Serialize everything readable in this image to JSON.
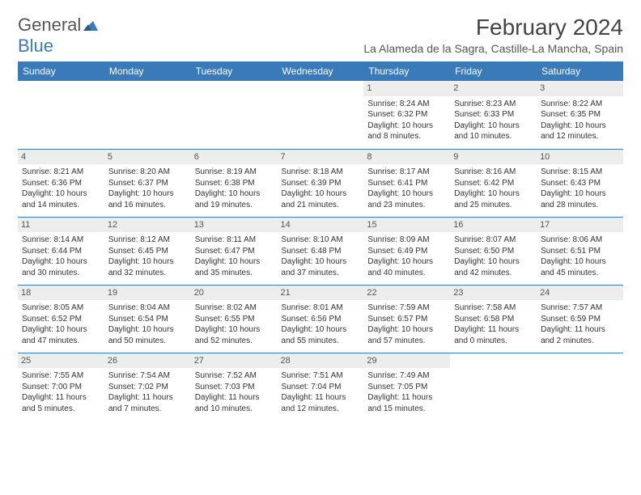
{
  "logo": {
    "word1": "General",
    "word2": "Blue"
  },
  "title": "February 2024",
  "location": "La Alameda de la Sagra, Castille-La Mancha, Spain",
  "weekdays": [
    "Sunday",
    "Monday",
    "Tuesday",
    "Wednesday",
    "Thursday",
    "Friday",
    "Saturday"
  ],
  "colors": {
    "header_bg": "#3a7ab8",
    "header_text": "#ffffff",
    "daynum_bg": "#eceded",
    "border": "#3a7ab8",
    "text": "#333333"
  },
  "weeks": [
    [
      {
        "day": "",
        "sunrise": "",
        "sunset": "",
        "daylight": ""
      },
      {
        "day": "",
        "sunrise": "",
        "sunset": "",
        "daylight": ""
      },
      {
        "day": "",
        "sunrise": "",
        "sunset": "",
        "daylight": ""
      },
      {
        "day": "",
        "sunrise": "",
        "sunset": "",
        "daylight": ""
      },
      {
        "day": "1",
        "sunrise": "Sunrise: 8:24 AM",
        "sunset": "Sunset: 6:32 PM",
        "daylight": "Daylight: 10 hours and 8 minutes."
      },
      {
        "day": "2",
        "sunrise": "Sunrise: 8:23 AM",
        "sunset": "Sunset: 6:33 PM",
        "daylight": "Daylight: 10 hours and 10 minutes."
      },
      {
        "day": "3",
        "sunrise": "Sunrise: 8:22 AM",
        "sunset": "Sunset: 6:35 PM",
        "daylight": "Daylight: 10 hours and 12 minutes."
      }
    ],
    [
      {
        "day": "4",
        "sunrise": "Sunrise: 8:21 AM",
        "sunset": "Sunset: 6:36 PM",
        "daylight": "Daylight: 10 hours and 14 minutes."
      },
      {
        "day": "5",
        "sunrise": "Sunrise: 8:20 AM",
        "sunset": "Sunset: 6:37 PM",
        "daylight": "Daylight: 10 hours and 16 minutes."
      },
      {
        "day": "6",
        "sunrise": "Sunrise: 8:19 AM",
        "sunset": "Sunset: 6:38 PM",
        "daylight": "Daylight: 10 hours and 19 minutes."
      },
      {
        "day": "7",
        "sunrise": "Sunrise: 8:18 AM",
        "sunset": "Sunset: 6:39 PM",
        "daylight": "Daylight: 10 hours and 21 minutes."
      },
      {
        "day": "8",
        "sunrise": "Sunrise: 8:17 AM",
        "sunset": "Sunset: 6:41 PM",
        "daylight": "Daylight: 10 hours and 23 minutes."
      },
      {
        "day": "9",
        "sunrise": "Sunrise: 8:16 AM",
        "sunset": "Sunset: 6:42 PM",
        "daylight": "Daylight: 10 hours and 25 minutes."
      },
      {
        "day": "10",
        "sunrise": "Sunrise: 8:15 AM",
        "sunset": "Sunset: 6:43 PM",
        "daylight": "Daylight: 10 hours and 28 minutes."
      }
    ],
    [
      {
        "day": "11",
        "sunrise": "Sunrise: 8:14 AM",
        "sunset": "Sunset: 6:44 PM",
        "daylight": "Daylight: 10 hours and 30 minutes."
      },
      {
        "day": "12",
        "sunrise": "Sunrise: 8:12 AM",
        "sunset": "Sunset: 6:45 PM",
        "daylight": "Daylight: 10 hours and 32 minutes."
      },
      {
        "day": "13",
        "sunrise": "Sunrise: 8:11 AM",
        "sunset": "Sunset: 6:47 PM",
        "daylight": "Daylight: 10 hours and 35 minutes."
      },
      {
        "day": "14",
        "sunrise": "Sunrise: 8:10 AM",
        "sunset": "Sunset: 6:48 PM",
        "daylight": "Daylight: 10 hours and 37 minutes."
      },
      {
        "day": "15",
        "sunrise": "Sunrise: 8:09 AM",
        "sunset": "Sunset: 6:49 PM",
        "daylight": "Daylight: 10 hours and 40 minutes."
      },
      {
        "day": "16",
        "sunrise": "Sunrise: 8:07 AM",
        "sunset": "Sunset: 6:50 PM",
        "daylight": "Daylight: 10 hours and 42 minutes."
      },
      {
        "day": "17",
        "sunrise": "Sunrise: 8:06 AM",
        "sunset": "Sunset: 6:51 PM",
        "daylight": "Daylight: 10 hours and 45 minutes."
      }
    ],
    [
      {
        "day": "18",
        "sunrise": "Sunrise: 8:05 AM",
        "sunset": "Sunset: 6:52 PM",
        "daylight": "Daylight: 10 hours and 47 minutes."
      },
      {
        "day": "19",
        "sunrise": "Sunrise: 8:04 AM",
        "sunset": "Sunset: 6:54 PM",
        "daylight": "Daylight: 10 hours and 50 minutes."
      },
      {
        "day": "20",
        "sunrise": "Sunrise: 8:02 AM",
        "sunset": "Sunset: 6:55 PM",
        "daylight": "Daylight: 10 hours and 52 minutes."
      },
      {
        "day": "21",
        "sunrise": "Sunrise: 8:01 AM",
        "sunset": "Sunset: 6:56 PM",
        "daylight": "Daylight: 10 hours and 55 minutes."
      },
      {
        "day": "22",
        "sunrise": "Sunrise: 7:59 AM",
        "sunset": "Sunset: 6:57 PM",
        "daylight": "Daylight: 10 hours and 57 minutes."
      },
      {
        "day": "23",
        "sunrise": "Sunrise: 7:58 AM",
        "sunset": "Sunset: 6:58 PM",
        "daylight": "Daylight: 11 hours and 0 minutes."
      },
      {
        "day": "24",
        "sunrise": "Sunrise: 7:57 AM",
        "sunset": "Sunset: 6:59 PM",
        "daylight": "Daylight: 11 hours and 2 minutes."
      }
    ],
    [
      {
        "day": "25",
        "sunrise": "Sunrise: 7:55 AM",
        "sunset": "Sunset: 7:00 PM",
        "daylight": "Daylight: 11 hours and 5 minutes."
      },
      {
        "day": "26",
        "sunrise": "Sunrise: 7:54 AM",
        "sunset": "Sunset: 7:02 PM",
        "daylight": "Daylight: 11 hours and 7 minutes."
      },
      {
        "day": "27",
        "sunrise": "Sunrise: 7:52 AM",
        "sunset": "Sunset: 7:03 PM",
        "daylight": "Daylight: 11 hours and 10 minutes."
      },
      {
        "day": "28",
        "sunrise": "Sunrise: 7:51 AM",
        "sunset": "Sunset: 7:04 PM",
        "daylight": "Daylight: 11 hours and 12 minutes."
      },
      {
        "day": "29",
        "sunrise": "Sunrise: 7:49 AM",
        "sunset": "Sunset: 7:05 PM",
        "daylight": "Daylight: 11 hours and 15 minutes."
      },
      {
        "day": "",
        "sunrise": "",
        "sunset": "",
        "daylight": ""
      },
      {
        "day": "",
        "sunrise": "",
        "sunset": "",
        "daylight": ""
      }
    ]
  ]
}
